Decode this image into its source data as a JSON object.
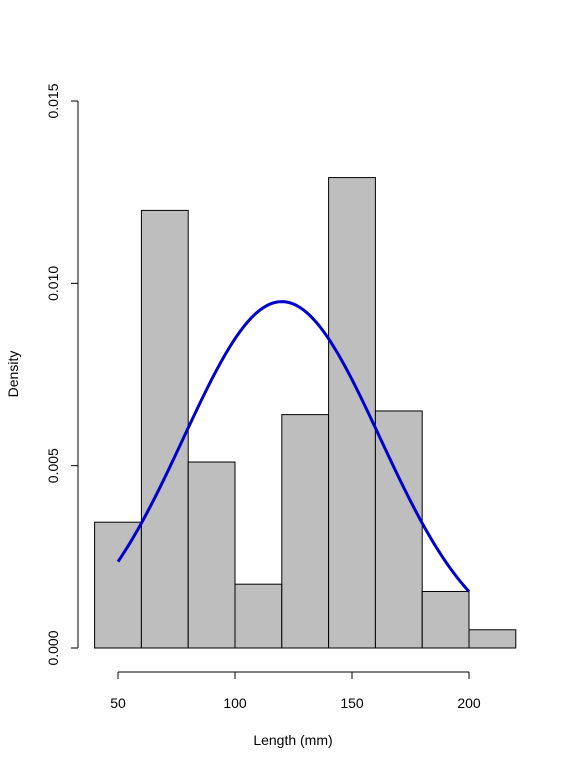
{
  "chart_data": {
    "type": "histogram",
    "title": "",
    "xlabel": "Length (mm)",
    "ylabel": "Density",
    "xlim": [
      40,
      220
    ],
    "ylim": [
      0,
      0.015
    ],
    "x_ticks": [
      50,
      100,
      150,
      200
    ],
    "x_tick_labels": [
      "50",
      "100",
      "150",
      "200"
    ],
    "y_ticks": [
      0,
      0.005,
      0.01,
      0.015
    ],
    "y_tick_labels": [
      "0.000",
      "0.005",
      "0.010",
      "0.015"
    ],
    "grid": false,
    "bins": [
      {
        "start": 40,
        "end": 60,
        "density": 0.00345
      },
      {
        "start": 60,
        "end": 80,
        "density": 0.012
      },
      {
        "start": 80,
        "end": 100,
        "density": 0.0051
      },
      {
        "start": 100,
        "end": 120,
        "density": 0.00175
      },
      {
        "start": 120,
        "end": 140,
        "density": 0.0064
      },
      {
        "start": 140,
        "end": 160,
        "density": 0.0129
      },
      {
        "start": 160,
        "end": 180,
        "density": 0.0065
      },
      {
        "start": 180,
        "end": 200,
        "density": 0.00155
      },
      {
        "start": 200,
        "end": 220,
        "density": 0.0005
      }
    ],
    "curve": {
      "type": "normal-density",
      "mean": 120,
      "sd": 42,
      "x_range": [
        50,
        200
      ]
    },
    "colors": {
      "bar_fill": "#bebebe",
      "bar_stroke": "#000000",
      "curve": "#0000cd",
      "axis": "#000000"
    }
  }
}
